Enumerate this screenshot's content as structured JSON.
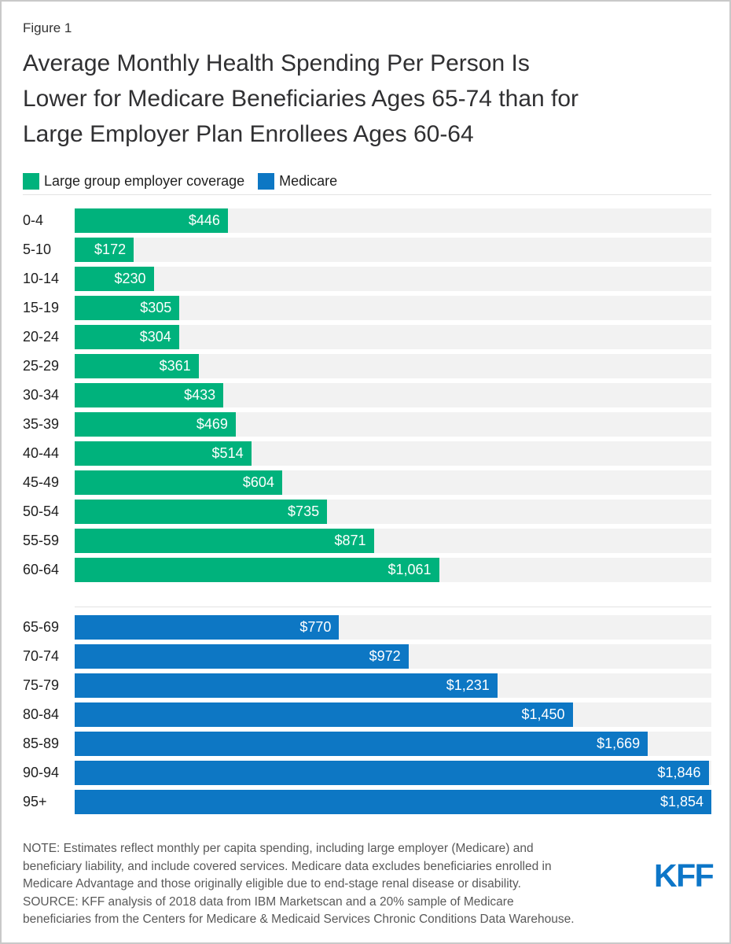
{
  "figure_label": "Figure 1",
  "title_lines": [
    "Average Monthly Health Spending Per Person Is",
    "Lower for Medicare Beneficiaries Ages 65-74 than for",
    "Large Employer Plan Enrollees Ages 60-64"
  ],
  "chart_data": {
    "type": "bar",
    "orientation": "horizontal",
    "value_axis": {
      "min": 0,
      "max": 1854,
      "hidden": true
    },
    "track_color": "#f2f2f2",
    "series": [
      {
        "name": "Large group employer coverage",
        "color": "#00b27c",
        "points": [
          {
            "category": "0-4",
            "value": 446,
            "label": "$446"
          },
          {
            "category": "5-10",
            "value": 172,
            "label": "$172"
          },
          {
            "category": "10-14",
            "value": 230,
            "label": "$230"
          },
          {
            "category": "15-19",
            "value": 305,
            "label": "$305"
          },
          {
            "category": "20-24",
            "value": 304,
            "label": "$304"
          },
          {
            "category": "25-29",
            "value": 361,
            "label": "$361"
          },
          {
            "category": "30-34",
            "value": 433,
            "label": "$433"
          },
          {
            "category": "35-39",
            "value": 469,
            "label": "$469"
          },
          {
            "category": "40-44",
            "value": 514,
            "label": "$514"
          },
          {
            "category": "45-49",
            "value": 604,
            "label": "$604"
          },
          {
            "category": "50-54",
            "value": 735,
            "label": "$735"
          },
          {
            "category": "55-59",
            "value": 871,
            "label": "$871"
          },
          {
            "category": "60-64",
            "value": 1061,
            "label": "$1,061"
          }
        ]
      },
      {
        "name": "Medicare",
        "color": "#0d77c4",
        "points": [
          {
            "category": "65-69",
            "value": 770,
            "label": "$770"
          },
          {
            "category": "70-74",
            "value": 972,
            "label": "$972"
          },
          {
            "category": "75-79",
            "value": 1231,
            "label": "$1,231"
          },
          {
            "category": "80-84",
            "value": 1450,
            "label": "$1,450"
          },
          {
            "category": "85-89",
            "value": 1669,
            "label": "$1,669"
          },
          {
            "category": "90-94",
            "value": 1846,
            "label": "$1,846"
          },
          {
            "category": "95+",
            "value": 1854,
            "label": "$1,854"
          }
        ]
      }
    ]
  },
  "footnote": {
    "note_lines": [
      "NOTE: Estimates reflect monthly per capita spending, including large employer (Medicare) and",
      "beneficiary liability, and include covered services. Medicare data excludes beneficiaries enrolled in",
      "Medicare Advantage and those originally eligible due to end-stage renal disease or disability."
    ],
    "source_lines": [
      "SOURCE: KFF analysis of 2018 data from IBM Marketscan and a 20% sample of Medicare",
      "beneficiaries from the Centers for Medicare & Medicaid Services Chronic Conditions Data Warehouse."
    ]
  },
  "branding": {
    "logo_text": "KFF"
  }
}
